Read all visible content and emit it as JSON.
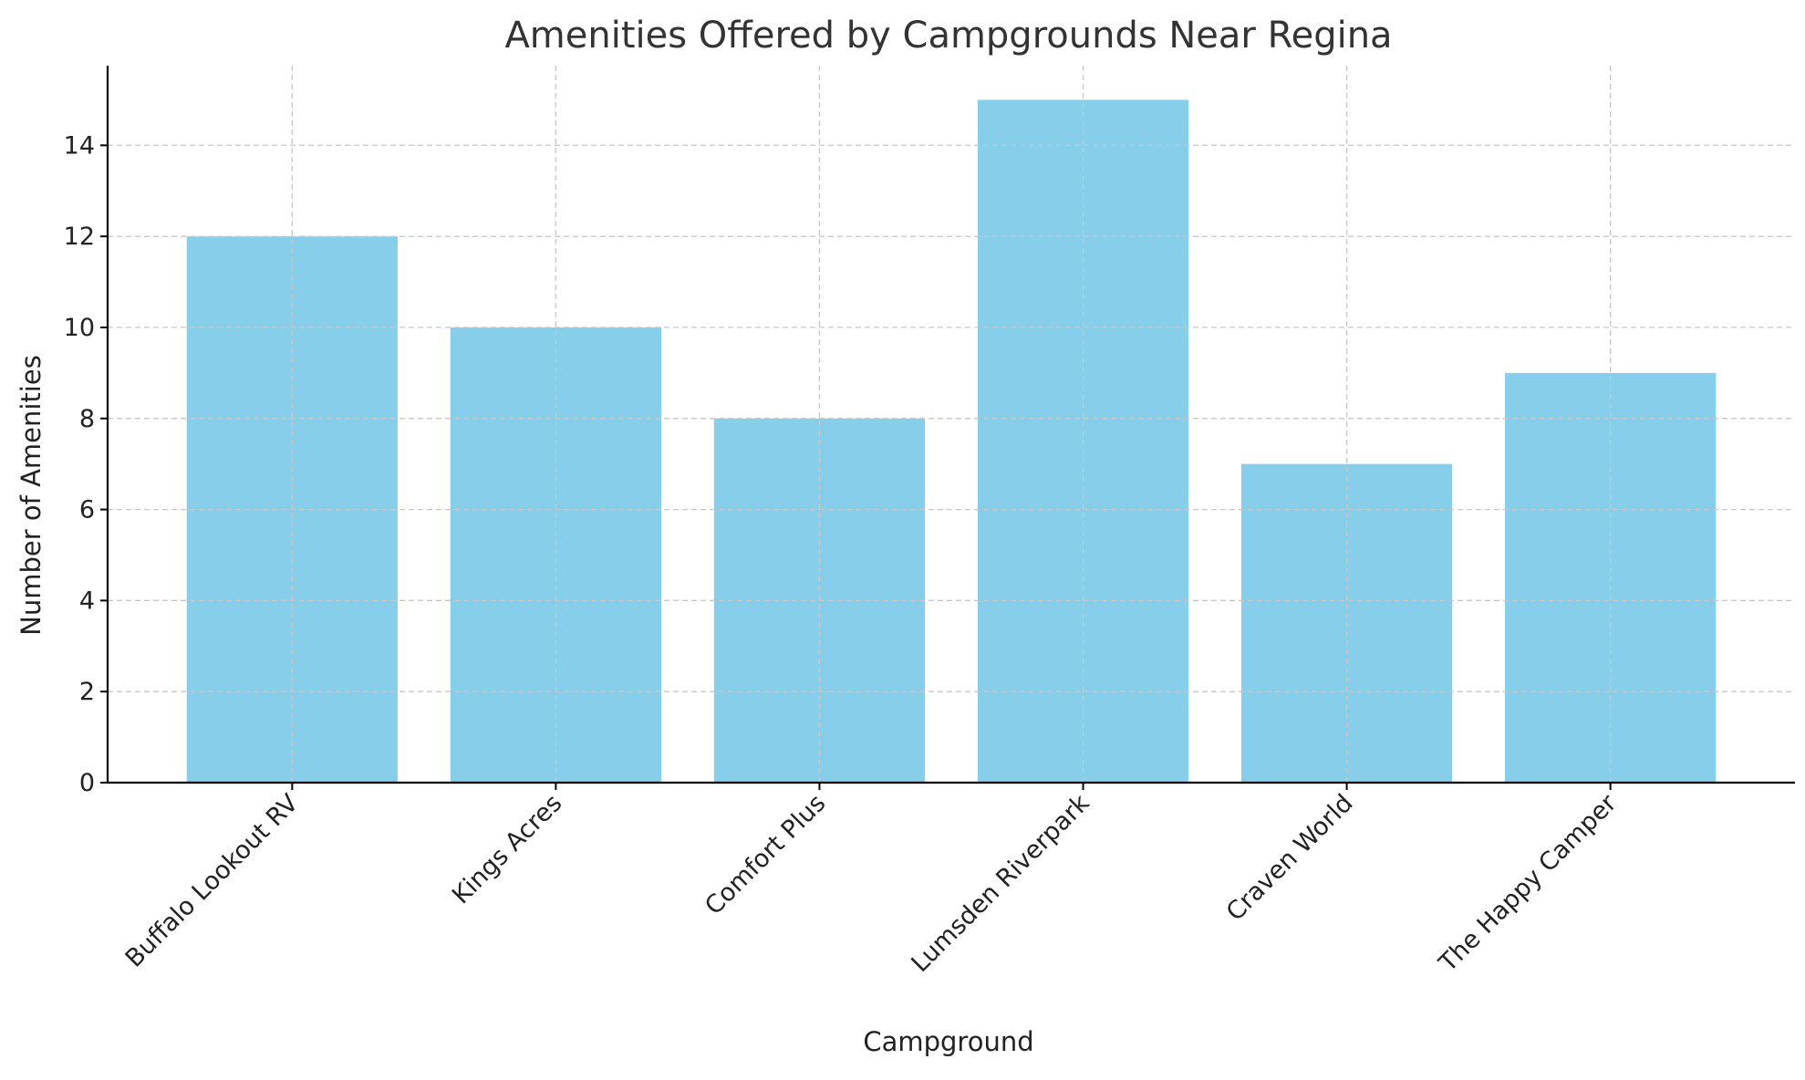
{
  "chart_data": {
    "type": "bar",
    "title": "Amenities Offered by Campgrounds Near Regina",
    "xlabel": "Campground",
    "ylabel": "Number of Amenities",
    "categories": [
      "Buffalo Lookout RV",
      "Kings Acres",
      "Comfort Plus",
      "Lumsden Riverpark",
      "Craven World",
      "The Happy Camper"
    ],
    "values": [
      12,
      10,
      8,
      15,
      7,
      9
    ],
    "ylim": [
      0,
      15.75
    ],
    "yticks": [
      0,
      2,
      4,
      6,
      8,
      10,
      12,
      14
    ],
    "grid": true,
    "bar_color": "#87CEEB"
  }
}
